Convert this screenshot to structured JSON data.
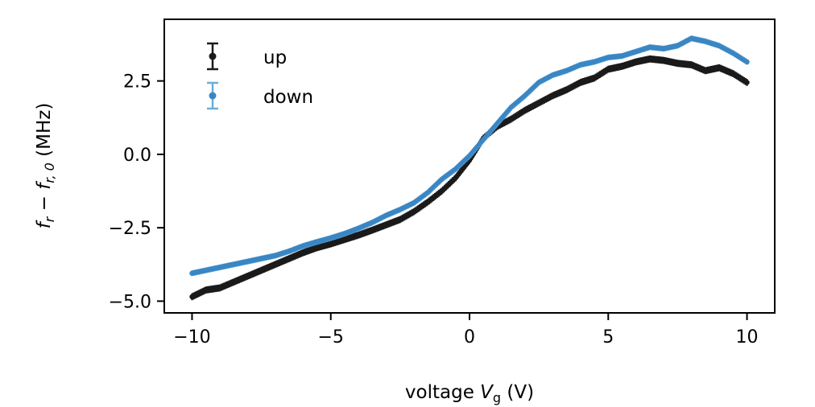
{
  "chart_data": {
    "type": "scatter",
    "title": "",
    "xlabel": {
      "prefix": "voltage ",
      "var": "V",
      "sub": "g",
      "suffix": " (V)"
    },
    "ylabel": {
      "f1": "f",
      "s1": "r",
      "minus": " − ",
      "f2": "f",
      "s2": "r, 0",
      "suffix": " (MHz)"
    },
    "xlim": [
      -11,
      11
    ],
    "ylim": [
      -5.4,
      4.6
    ],
    "x_ticks": [
      -10,
      -5,
      0,
      5,
      10
    ],
    "x_tick_labels": [
      "−10",
      "−5",
      "0",
      "5",
      "10"
    ],
    "y_ticks": [
      -5.0,
      -2.5,
      0.0,
      2.5
    ],
    "y_tick_labels": [
      "−5.0",
      "−2.5",
      "0.0",
      "2.5"
    ],
    "grid": false,
    "legend_position": "top-left",
    "legend": [
      "up",
      "down"
    ],
    "series": [
      {
        "name": "up",
        "color": "#1a1a1a",
        "error_color": "#1a1a1a",
        "x": [
          -10,
          -9.5,
          -9,
          -8.5,
          -8,
          -7.5,
          -7,
          -6.5,
          -6,
          -5.5,
          -5,
          -4.5,
          -4,
          -3.5,
          -3,
          -2.5,
          -2,
          -1.5,
          -1,
          -0.5,
          0,
          0.5,
          1,
          1.5,
          2,
          2.5,
          3,
          3.5,
          4,
          4.5,
          5,
          5.5,
          6,
          6.5,
          7,
          7.5,
          8,
          8.5,
          9,
          9.5,
          10
        ],
        "values": [
          -4.85,
          -4.62,
          -4.55,
          -4.35,
          -4.15,
          -3.95,
          -3.75,
          -3.55,
          -3.35,
          -3.18,
          -3.05,
          -2.9,
          -2.75,
          -2.58,
          -2.4,
          -2.22,
          -1.95,
          -1.62,
          -1.25,
          -0.8,
          -0.2,
          0.55,
          0.95,
          1.2,
          1.5,
          1.75,
          2.0,
          2.2,
          2.45,
          2.6,
          2.9,
          3.0,
          3.15,
          3.25,
          3.2,
          3.1,
          3.05,
          2.85,
          2.95,
          2.75,
          2.45
        ],
        "error": 0.12
      },
      {
        "name": "down",
        "color": "#3a86c4",
        "error_color": "#6baed6",
        "x": [
          -10,
          -9.5,
          -9,
          -8.5,
          -8,
          -7.5,
          -7,
          -6.5,
          -6,
          -5.5,
          -5,
          -4.5,
          -4,
          -3.5,
          -3,
          -2.5,
          -2,
          -1.5,
          -1,
          -0.5,
          0,
          0.5,
          1,
          1.5,
          2,
          2.5,
          3,
          3.5,
          4,
          4.5,
          5,
          5.5,
          6,
          6.5,
          7,
          7.5,
          8,
          8.5,
          9,
          9.5,
          10
        ],
        "values": [
          -4.05,
          -3.95,
          -3.85,
          -3.75,
          -3.65,
          -3.55,
          -3.45,
          -3.3,
          -3.12,
          -2.98,
          -2.85,
          -2.7,
          -2.52,
          -2.32,
          -2.08,
          -1.88,
          -1.65,
          -1.3,
          -0.85,
          -0.5,
          -0.05,
          0.5,
          1.05,
          1.6,
          2.0,
          2.45,
          2.7,
          2.85,
          3.05,
          3.15,
          3.3,
          3.35,
          3.5,
          3.65,
          3.6,
          3.7,
          3.95,
          3.85,
          3.7,
          3.45,
          3.15
        ],
        "error": 0.1
      }
    ]
  }
}
